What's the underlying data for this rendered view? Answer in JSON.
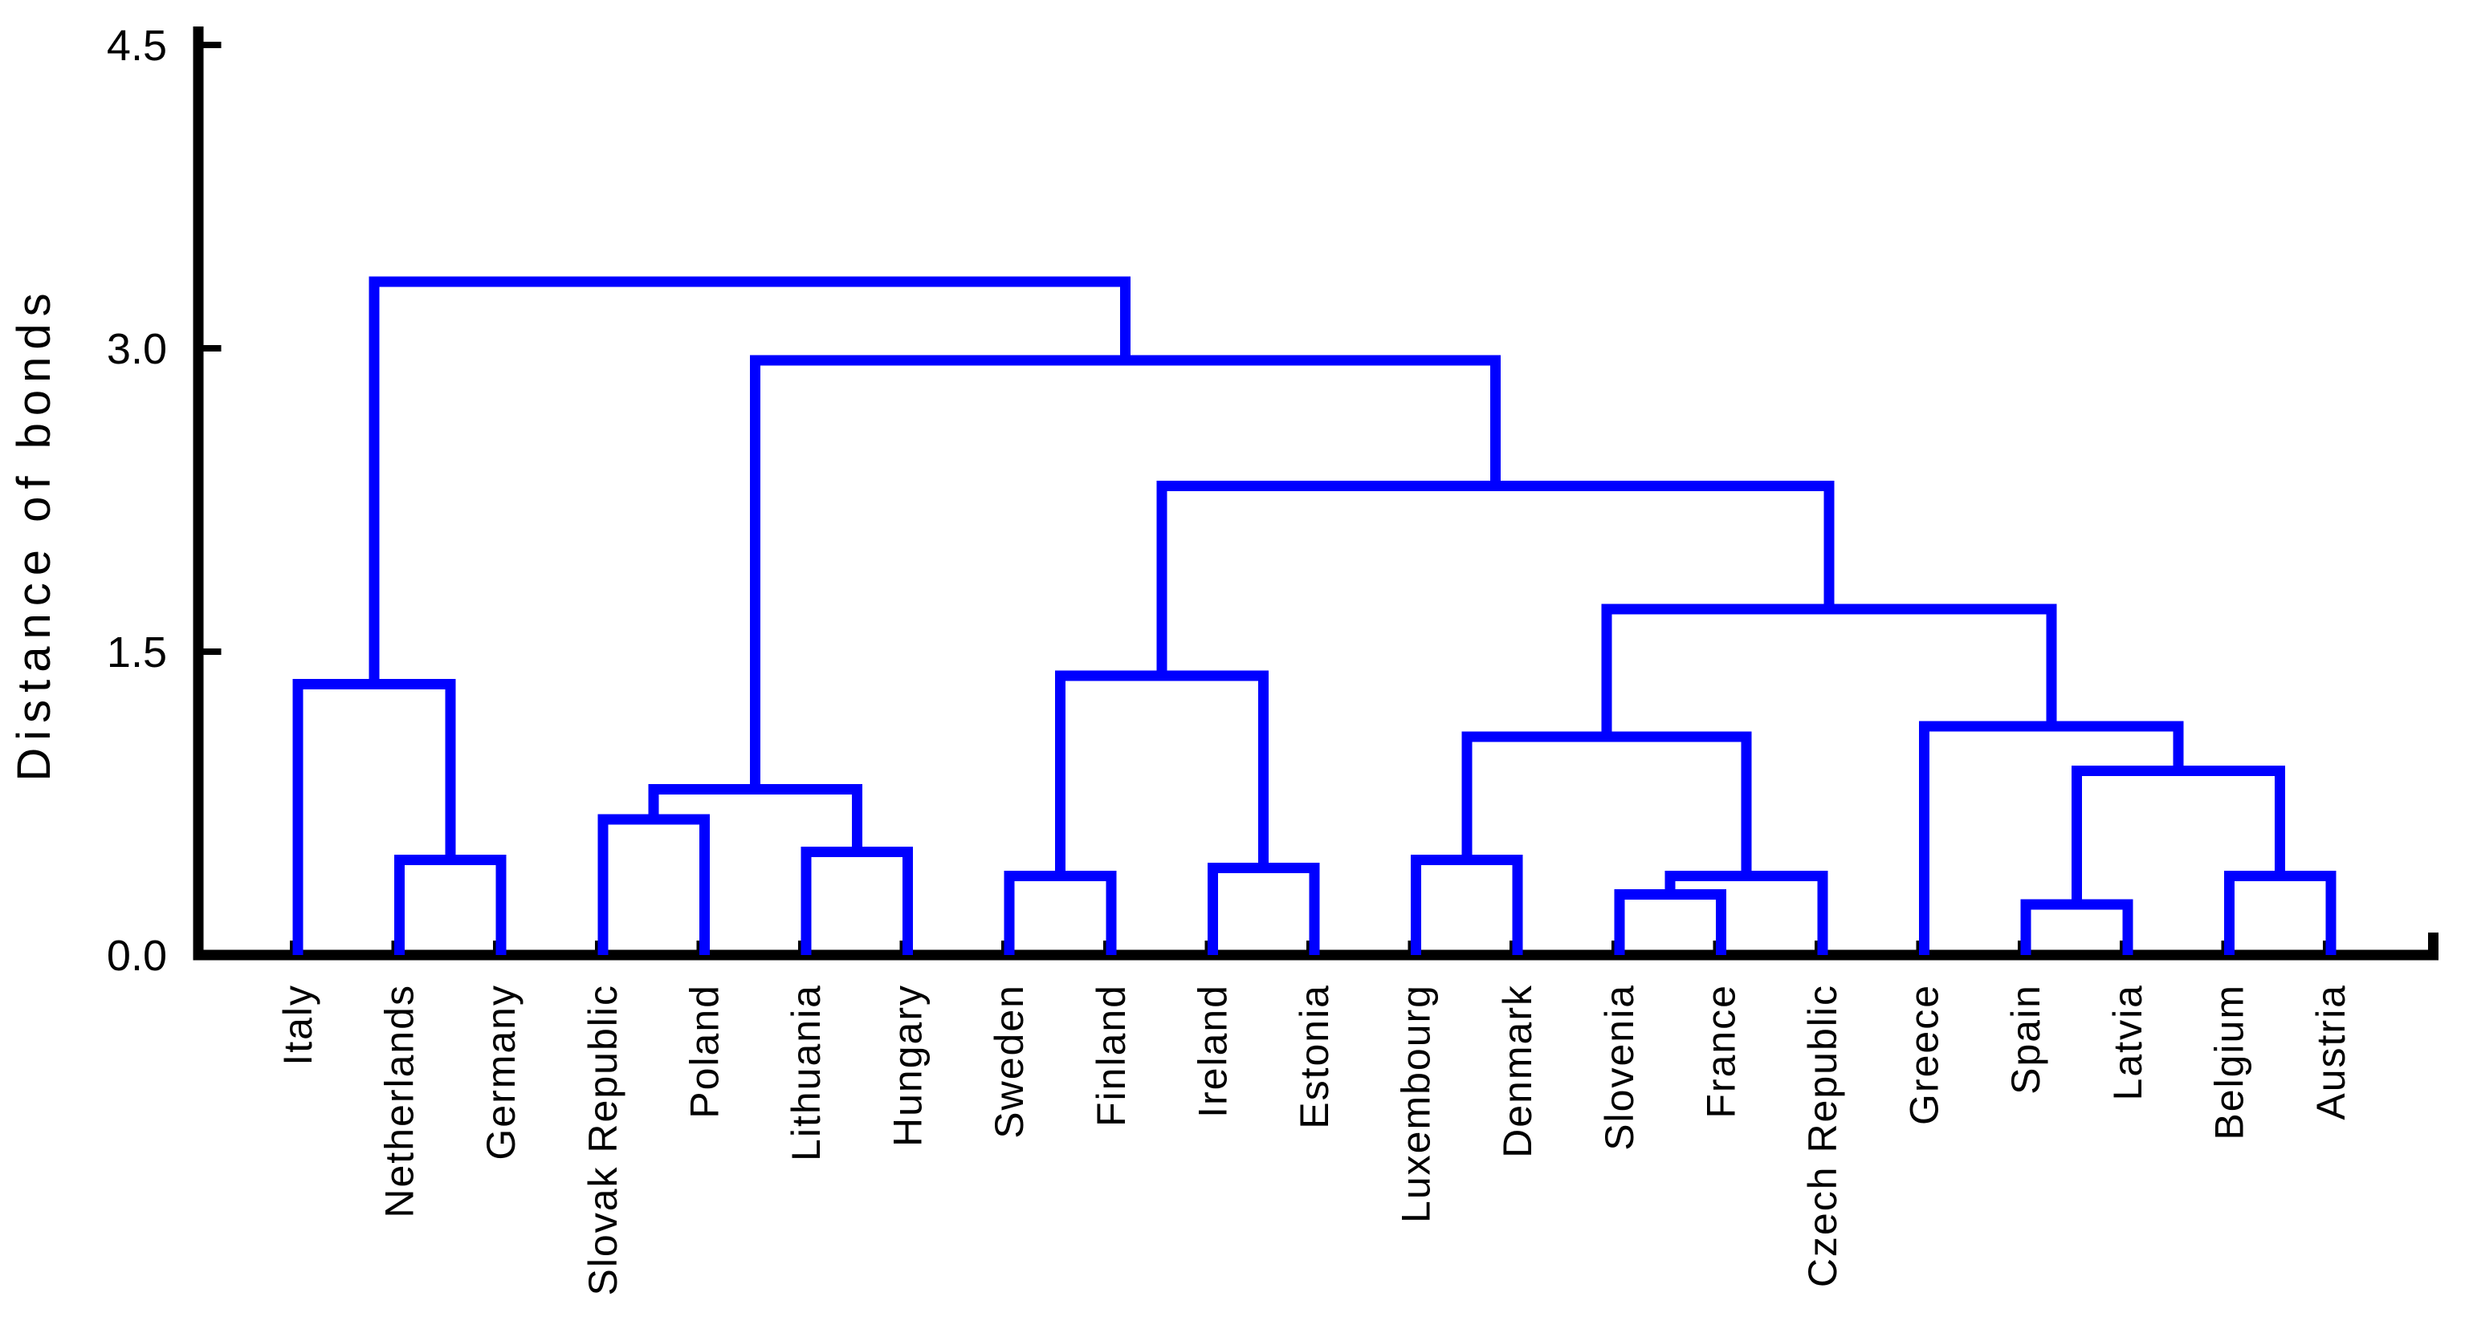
{
  "chart_data": {
    "type": "dendrogram",
    "title": "",
    "xlabel": "",
    "ylabel": "Distance of bonds",
    "ylim": [
      0,
      4.5
    ],
    "grid": false,
    "line_color": "#0000ff",
    "axis_color": "#000000",
    "y_axis": {
      "ticks": [
        {
          "value": 0.0,
          "label": "0.0"
        },
        {
          "value": 1.5,
          "label": "1.5"
        },
        {
          "value": 3.0,
          "label": "3.0"
        },
        {
          "value": 4.5,
          "label": "4.5"
        }
      ]
    },
    "leaves": [
      "Italy",
      "Netherlands",
      "Germany",
      "Slovak Republic",
      "Poland",
      "Lithuania",
      "Hungary",
      "Sweden",
      "Finland",
      "Ireland",
      "Estonia",
      "Luxembourg",
      "Denmark",
      "Slovenia",
      "France",
      "Czech Republic",
      "Greece",
      "Spain",
      "Latvia",
      "Belgium",
      "Austria"
    ],
    "tree": {
      "height": 3.33,
      "children": [
        {
          "height": 1.34,
          "children": [
            {
              "leaf": "Italy"
            },
            {
              "height": 0.47,
              "children": [
                {
                  "leaf": "Netherlands"
                },
                {
                  "leaf": "Germany"
                }
              ]
            }
          ]
        },
        {
          "height": 2.94,
          "children": [
            {
              "height": 0.82,
              "children": [
                {
                  "height": 0.67,
                  "children": [
                    {
                      "leaf": "Slovak Republic"
                    },
                    {
                      "leaf": "Poland"
                    }
                  ]
                },
                {
                  "height": 0.51,
                  "children": [
                    {
                      "leaf": "Lithuania"
                    },
                    {
                      "leaf": "Hungary"
                    }
                  ]
                }
              ]
            },
            {
              "height": 2.32,
              "children": [
                {
                  "height": 1.38,
                  "children": [
                    {
                      "height": 0.39,
                      "children": [
                        {
                          "leaf": "Sweden"
                        },
                        {
                          "leaf": "Finland"
                        }
                      ]
                    },
                    {
                      "height": 0.43,
                      "children": [
                        {
                          "leaf": "Ireland"
                        },
                        {
                          "leaf": "Estonia"
                        }
                      ]
                    }
                  ]
                },
                {
                  "height": 1.71,
                  "children": [
                    {
                      "height": 1.08,
                      "children": [
                        {
                          "height": 0.47,
                          "children": [
                            {
                              "leaf": "Luxembourg"
                            },
                            {
                              "leaf": "Denmark"
                            }
                          ]
                        },
                        {
                          "height": 0.39,
                          "children": [
                            {
                              "height": 0.3,
                              "children": [
                                {
                                  "leaf": "Slovenia"
                                },
                                {
                                  "leaf": "France"
                                }
                              ]
                            },
                            {
                              "leaf": "Czech Republic"
                            }
                          ]
                        }
                      ]
                    },
                    {
                      "height": 1.13,
                      "children": [
                        {
                          "leaf": "Greece"
                        },
                        {
                          "height": 0.91,
                          "children": [
                            {
                              "height": 0.25,
                              "children": [
                                {
                                  "leaf": "Spain"
                                },
                                {
                                  "leaf": "Latvia"
                                }
                              ]
                            },
                            {
                              "height": 0.39,
                              "children": [
                                {
                                  "leaf": "Belgium"
                                },
                                {
                                  "leaf": "Austria"
                                }
                              ]
                            }
                          ]
                        }
                      ]
                    }
                  ]
                }
              ]
            }
          ]
        }
      ]
    }
  }
}
